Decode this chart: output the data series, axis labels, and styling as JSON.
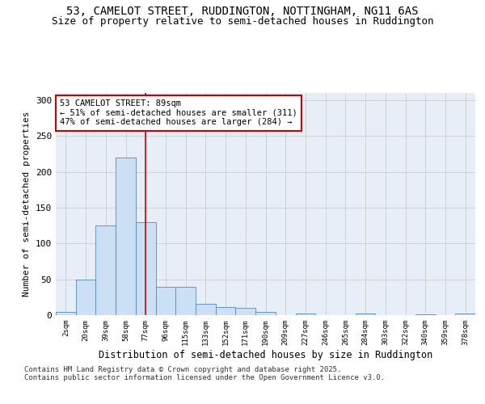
{
  "title_line1": "53, CAMELOT STREET, RUDDINGTON, NOTTINGHAM, NG11 6AS",
  "title_line2": "Size of property relative to semi-detached houses in Ruddington",
  "xlabel": "Distribution of semi-detached houses by size in Ruddington",
  "ylabel": "Number of semi-detached properties",
  "categories": [
    "2sqm",
    "20sqm",
    "39sqm",
    "58sqm",
    "77sqm",
    "96sqm",
    "115sqm",
    "133sqm",
    "152sqm",
    "171sqm",
    "190sqm",
    "209sqm",
    "227sqm",
    "246sqm",
    "265sqm",
    "284sqm",
    "303sqm",
    "322sqm",
    "340sqm",
    "359sqm",
    "378sqm"
  ],
  "values": [
    4,
    50,
    125,
    220,
    130,
    40,
    40,
    16,
    11,
    10,
    4,
    0,
    2,
    0,
    0,
    2,
    0,
    0,
    1,
    0,
    2
  ],
  "bar_color": "#cce0f5",
  "bar_edge_color": "#5588bb",
  "grid_color": "#cccccc",
  "bg_color": "#e8eef8",
  "vline_position": 4.5,
  "vline_color": "#cc0000",
  "annotation_text": "53 CAMELOT STREET: 89sqm\n← 51% of semi-detached houses are smaller (311)\n47% of semi-detached houses are larger (284) →",
  "annotation_box_color": "#ffffff",
  "annotation_box_edge": "#cc0000",
  "ylim": [
    0,
    310
  ],
  "yticks": [
    0,
    50,
    100,
    150,
    200,
    250,
    300
  ],
  "footer": "Contains HM Land Registry data © Crown copyright and database right 2025.\nContains public sector information licensed under the Open Government Licence v3.0.",
  "title_fontsize": 10,
  "subtitle_fontsize": 9,
  "annotation_fontsize": 7.5,
  "ylabel_fontsize": 8,
  "xlabel_fontsize": 8.5,
  "footer_fontsize": 6.5
}
